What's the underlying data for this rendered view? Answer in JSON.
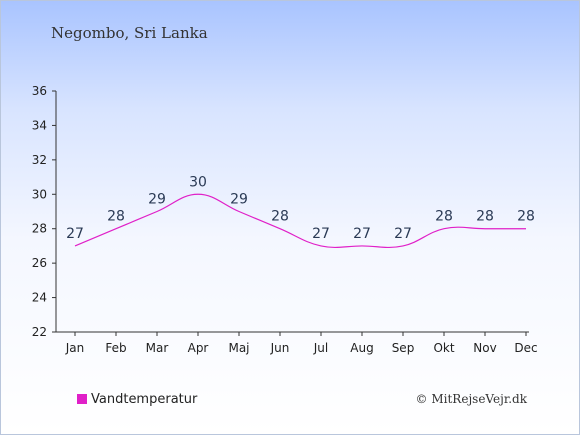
{
  "chart_data": {
    "type": "line",
    "title": "Negombo, Sri Lanka",
    "categories": [
      "Jan",
      "Feb",
      "Mar",
      "Apr",
      "Maj",
      "Jun",
      "Jul",
      "Aug",
      "Sep",
      "Okt",
      "Nov",
      "Dec"
    ],
    "series": [
      {
        "name": "Vandtemperatur",
        "values": [
          27,
          28,
          29,
          30,
          29,
          28,
          27,
          27,
          27,
          28,
          28,
          28
        ]
      }
    ],
    "yticks": [
      22,
      24,
      26,
      28,
      30,
      32,
      34,
      36
    ],
    "ylim": [
      22,
      36
    ],
    "grid": false,
    "legend": "bottom-left",
    "color": "#e020c8"
  },
  "credit": "© MitRejseVejr.dk"
}
